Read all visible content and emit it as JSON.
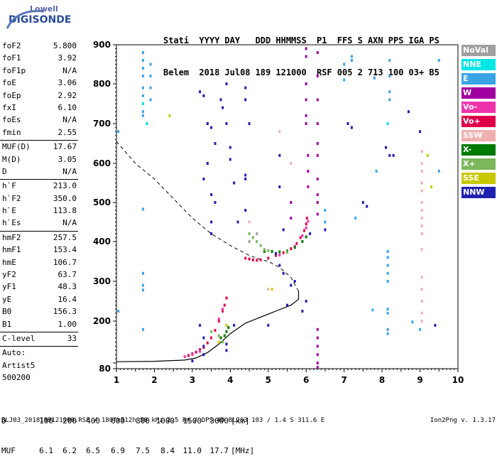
{
  "logo": {
    "line1": "Lowell",
    "line2": "DIGISONDE"
  },
  "header": {
    "labels": [
      "Stati",
      "YYYY",
      "DAY",
      "DDD",
      "HHMMSS",
      "P1",
      "FFS",
      "S",
      "AXN",
      "PPS",
      "IGA",
      "PS"
    ],
    "values": [
      "Belem",
      "2018",
      "Jul08",
      "189",
      "121000",
      "RSF",
      "005",
      "2",
      "713",
      "100",
      "03+",
      "B5"
    ]
  },
  "params_group1": [
    {
      "name": "foF2",
      "value": "5.800"
    },
    {
      "name": "foF1",
      "value": "3.92"
    },
    {
      "name": "foF1p",
      "value": "N/A"
    },
    {
      "name": "foE",
      "value": "3.06"
    },
    {
      "name": "foEp",
      "value": "2.92"
    },
    {
      "name": "fxI",
      "value": "6.10"
    },
    {
      "name": "foEs",
      "value": "N/A"
    },
    {
      "name": "fmin",
      "value": "2.55"
    }
  ],
  "params_group2": [
    {
      "name": "MUF(D)",
      "value": "17.67"
    },
    {
      "name": "M(D)",
      "value": "3.05"
    },
    {
      "name": "D",
      "value": "N/A"
    }
  ],
  "params_group3": [
    {
      "name": "h`F",
      "value": "213.0"
    },
    {
      "name": "h`F2",
      "value": "350.0"
    },
    {
      "name": "h`E",
      "value": "113.8"
    },
    {
      "name": "h`Es",
      "value": "N/A"
    }
  ],
  "params_group4": [
    {
      "name": "hmF2",
      "value": "257.5"
    },
    {
      "name": "hmF1",
      "value": "153.4"
    },
    {
      "name": "hmE",
      "value": "106.7"
    },
    {
      "name": "yF2",
      "value": "63.7"
    },
    {
      "name": "yF1",
      "value": "48.3"
    },
    {
      "name": "yE",
      "value": "16.4"
    },
    {
      "name": "B0",
      "value": "156.3"
    },
    {
      "name": "B1",
      "value": "1.00"
    }
  ],
  "params_group5": [
    {
      "name": "C-level",
      "value": "33"
    }
  ],
  "params_group6": [
    "Auto:",
    "Artist5",
    "500200"
  ],
  "legend": [
    {
      "label": "NoVal",
      "color": "#a0a0a0"
    },
    {
      "label": "NNE",
      "color": "#00e5e5"
    },
    {
      "label": "E",
      "color": "#3aa4e6"
    },
    {
      "label": "W",
      "color": "#a000a0"
    },
    {
      "label": "Vo-",
      "color": "#ee33aa"
    },
    {
      "label": "Vo+",
      "color": "#e0004a"
    },
    {
      "label": "SSW",
      "color": "#f0b0b0"
    },
    {
      "label": "X-",
      "color": "#007a00"
    },
    {
      "label": "X+",
      "color": "#7ab85a"
    },
    {
      "label": "SSE",
      "color": "#c8c800"
    },
    {
      "label": "NNW",
      "color": "#2020b0"
    }
  ],
  "dtable": {
    "d_label": "D",
    "d_values": [
      "100",
      "200",
      "400",
      "600",
      "800",
      "1000",
      "1500",
      "3000"
    ],
    "d_unit": "[km]",
    "muf_label": "MUF",
    "muf_values": [
      "6.1",
      "6.2",
      "6.5",
      "6.9",
      "7.5",
      "8.4",
      "11.0",
      "17.7"
    ],
    "muf_unit": "[MHz]"
  },
  "footer": "BLJ03_2018189121000.RSF / 180fx512h 50 kHz 2.5 km / DPS-4D BLJ03 103 / 1.4 S 311.6 E",
  "version": "Ion2Png v. 1.3.17",
  "chart_data": {
    "type": "scatter",
    "xlim": [
      1,
      10
    ],
    "ylim": [
      80,
      900
    ],
    "x_ticks": [
      "1",
      "2",
      "3",
      "4",
      "5",
      "6",
      "7",
      "8",
      "9",
      "10"
    ],
    "y_ticks": [
      "80",
      "100",
      "200",
      "300",
      "400",
      "500",
      "600",
      "700",
      "800",
      "900"
    ],
    "grid": false,
    "profile_dashed": [
      [
        1.0,
        655
      ],
      [
        1.5,
        600
      ],
      [
        2.0,
        560
      ],
      [
        2.5,
        510
      ],
      [
        3.0,
        460
      ],
      [
        3.5,
        420
      ],
      [
        4.0,
        390
      ],
      [
        4.5,
        365
      ],
      [
        4.8,
        355
      ],
      [
        5.0,
        350
      ],
      [
        5.3,
        335
      ],
      [
        5.6,
        310
      ],
      [
        5.8,
        275
      ]
    ],
    "profile_solid": [
      [
        5.8,
        275
      ],
      [
        5.8,
        255
      ],
      [
        5.6,
        240
      ],
      [
        5.2,
        225
      ],
      [
        4.8,
        210
      ],
      [
        4.4,
        195
      ],
      [
        4.0,
        170
      ],
      [
        3.7,
        145
      ],
      [
        3.4,
        125
      ],
      [
        3.1,
        112
      ],
      [
        2.8,
        107
      ],
      [
        2.0,
        104
      ],
      [
        1.0,
        103
      ]
    ],
    "traces": [
      {
        "name": "Vo+",
        "points": [
          [
            4.4,
            358
          ],
          [
            4.5,
            356
          ],
          [
            4.6,
            354
          ],
          [
            4.7,
            353
          ],
          [
            4.8,
            354
          ],
          [
            5.0,
            358
          ],
          [
            5.2,
            365
          ],
          [
            5.4,
            372
          ],
          [
            5.6,
            382
          ],
          [
            5.75,
            395
          ],
          [
            5.85,
            410
          ],
          [
            5.95,
            428
          ],
          [
            6.0,
            445
          ],
          [
            6.02,
            460
          ],
          [
            2.9,
            118
          ],
          [
            3.0,
            122
          ],
          [
            3.1,
            126
          ],
          [
            3.2,
            132
          ],
          [
            3.3,
            137
          ],
          [
            3.4,
            148
          ],
          [
            3.5,
            160
          ],
          [
            3.6,
            178
          ],
          [
            3.7,
            200
          ],
          [
            3.8,
            225
          ],
          [
            3.85,
            240
          ],
          [
            3.9,
            258
          ]
        ]
      },
      {
        "name": "Vo-",
        "points": [
          [
            5.3,
            366
          ],
          [
            5.5,
            376
          ],
          [
            5.7,
            388
          ],
          [
            5.9,
            415
          ],
          [
            6.0,
            435
          ],
          [
            6.05,
            452
          ],
          [
            2.8,
            115
          ],
          [
            3.0,
            120
          ],
          [
            3.2,
            128
          ],
          [
            3.7,
            205
          ],
          [
            3.8,
            230
          ]
        ]
      },
      {
        "name": "X-",
        "points": [
          [
            4.9,
            375
          ],
          [
            5.1,
            375
          ],
          [
            5.3,
            374
          ],
          [
            5.5,
            376
          ],
          [
            5.7,
            385
          ],
          [
            5.9,
            400
          ],
          [
            6.0,
            412
          ],
          [
            3.75,
            160
          ],
          [
            3.85,
            165
          ],
          [
            3.9,
            175
          ],
          [
            3.95,
            185
          ]
        ]
      },
      {
        "name": "X+",
        "points": [
          [
            4.5,
            420
          ],
          [
            4.6,
            410
          ],
          [
            4.7,
            400
          ],
          [
            4.8,
            390
          ],
          [
            4.9,
            380
          ],
          [
            5.0,
            377
          ],
          [
            5.5,
            373
          ],
          [
            3.5,
            175
          ],
          [
            3.7,
            165
          ],
          [
            3.8,
            150
          ]
        ]
      },
      {
        "name": "W",
        "points": [
          [
            6.0,
            700
          ],
          [
            6.0,
            720
          ],
          [
            6.0,
            760
          ],
          [
            6.0,
            800
          ],
          [
            6.0,
            870
          ],
          [
            6.0,
            890
          ],
          [
            6.3,
            880
          ],
          [
            6.3,
            820
          ],
          [
            6.3,
            760
          ],
          [
            6.3,
            700
          ],
          [
            6.3,
            650
          ],
          [
            6.3,
            620
          ],
          [
            6.3,
            560
          ],
          [
            6.3,
            520
          ],
          [
            6.3,
            500
          ],
          [
            6.3,
            470
          ],
          [
            6.3,
            180
          ],
          [
            6.3,
            160
          ],
          [
            6.3,
            140
          ],
          [
            6.3,
            120
          ],
          [
            6.3,
            100
          ],
          [
            6.3,
            85
          ],
          [
            6.05,
            620
          ],
          [
            6.05,
            580
          ],
          [
            6.05,
            540
          ],
          [
            5.6,
            500
          ],
          [
            5.6,
            460
          ]
        ]
      },
      {
        "name": "E",
        "points": [
          [
            1.7,
            880
          ],
          [
            1.7,
            860
          ],
          [
            1.7,
            840
          ],
          [
            1.7,
            820
          ],
          [
            1.7,
            790
          ],
          [
            1.7,
            770
          ],
          [
            1.7,
            750
          ],
          [
            1.7,
            730
          ],
          [
            1.7,
            720
          ],
          [
            1.9,
            850
          ],
          [
            1.9,
            820
          ],
          [
            1.9,
            790
          ],
          [
            1.9,
            760
          ],
          [
            1.7,
            483
          ],
          [
            1.7,
            320
          ],
          [
            1.7,
            290
          ],
          [
            1.7,
            278
          ],
          [
            1.7,
            180
          ],
          [
            1.05,
            680
          ],
          [
            1.05,
            225
          ],
          [
            8.15,
            375
          ],
          [
            8.15,
            360
          ],
          [
            8.15,
            340
          ],
          [
            8.15,
            320
          ],
          [
            8.15,
            300
          ],
          [
            8.15,
            230
          ],
          [
            8.15,
            220
          ],
          [
            8.15,
            180
          ],
          [
            8.15,
            170
          ],
          [
            8.2,
            860
          ],
          [
            8.2,
            820
          ],
          [
            8.2,
            780
          ],
          [
            8.2,
            760
          ],
          [
            7.2,
            870
          ],
          [
            7.2,
            860
          ],
          [
            7.3,
            460
          ],
          [
            6.5,
            480
          ],
          [
            6.5,
            450
          ],
          [
            7.0,
            850
          ],
          [
            7.0,
            810
          ],
          [
            7.8,
            815
          ],
          [
            7.85,
            580
          ],
          [
            9.5,
            860
          ],
          [
            9.5,
            580
          ],
          [
            7.75,
            228
          ],
          [
            8.8,
            198
          ],
          [
            9.0,
            180
          ]
        ]
      },
      {
        "name": "NNW",
        "points": [
          [
            3.2,
            780
          ],
          [
            3.3,
            770
          ],
          [
            3.4,
            700
          ],
          [
            3.5,
            690
          ],
          [
            3.6,
            650
          ],
          [
            3.4,
            600
          ],
          [
            3.3,
            560
          ],
          [
            3.5,
            520
          ],
          [
            3.6,
            500
          ],
          [
            3.5,
            450
          ],
          [
            3.5,
            420
          ],
          [
            3.9,
            800
          ],
          [
            3.9,
            700
          ],
          [
            4.4,
            790
          ],
          [
            4.4,
            760
          ],
          [
            4.5,
            700
          ],
          [
            4.4,
            570
          ],
          [
            4.4,
            560
          ],
          [
            4.1,
            550
          ],
          [
            4.4,
            480
          ],
          [
            4.2,
            450
          ],
          [
            3.8,
            740
          ],
          [
            3.75,
            760
          ],
          [
            4.0,
            640
          ],
          [
            4.0,
            610
          ],
          [
            5.3,
            620
          ],
          [
            5.3,
            540
          ],
          [
            5.4,
            430
          ],
          [
            5.2,
            370
          ],
          [
            5.3,
            340
          ],
          [
            5.4,
            320
          ],
          [
            5.6,
            290
          ],
          [
            5.7,
            300
          ],
          [
            5.5,
            240
          ],
          [
            3.3,
            160
          ],
          [
            3.3,
            140
          ],
          [
            3.3,
            120
          ],
          [
            3.2,
            190
          ],
          [
            3.9,
            130
          ],
          [
            3.9,
            145
          ],
          [
            3.0,
            105
          ],
          [
            4.1,
            190
          ],
          [
            5.0,
            190
          ],
          [
            5.9,
            225
          ],
          [
            6.0,
            250
          ],
          [
            6.1,
            420
          ],
          [
            6.5,
            430
          ],
          [
            7.1,
            700
          ],
          [
            7.2,
            690
          ],
          [
            7.5,
            500
          ],
          [
            7.6,
            490
          ],
          [
            8.1,
            640
          ],
          [
            8.2,
            620
          ],
          [
            8.3,
            620
          ],
          [
            8.7,
            730
          ],
          [
            9.0,
            680
          ],
          [
            9.4,
            190
          ]
        ]
      },
      {
        "name": "SSW",
        "points": [
          [
            9.05,
            630
          ],
          [
            9.05,
            600
          ],
          [
            9.05,
            580
          ],
          [
            9.05,
            550
          ],
          [
            9.05,
            530
          ],
          [
            9.05,
            500
          ],
          [
            9.05,
            480
          ],
          [
            9.05,
            460
          ],
          [
            9.05,
            440
          ],
          [
            9.05,
            420
          ],
          [
            9.05,
            380
          ],
          [
            9.05,
            310
          ],
          [
            9.05,
            280
          ],
          [
            9.05,
            250
          ],
          [
            9.05,
            220
          ],
          [
            9.05,
            200
          ],
          [
            5.3,
            680
          ],
          [
            4.5,
            450
          ],
          [
            5.0,
            280
          ],
          [
            5.6,
            600
          ]
        ]
      },
      {
        "name": "SSE",
        "points": [
          [
            2.4,
            720
          ],
          [
            3.9,
            190
          ],
          [
            3.7,
            150
          ],
          [
            5.1,
            280
          ],
          [
            9.2,
            620
          ],
          [
            9.3,
            540
          ]
        ]
      },
      {
        "name": "NNE",
        "points": [
          [
            1.7,
            750
          ],
          [
            1.8,
            700
          ],
          [
            8.15,
            700
          ]
        ]
      },
      {
        "name": "NoVal",
        "points": [
          [
            4.5,
            400
          ],
          [
            4.7,
            420
          ]
        ]
      }
    ]
  }
}
